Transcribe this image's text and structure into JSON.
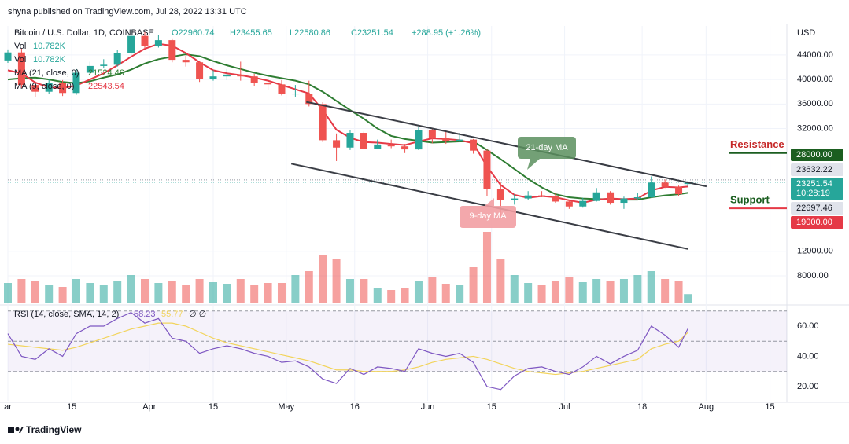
{
  "header": "shyna published on TradingView.com, Jul 28, 2022 13:31 UTC",
  "footer": "TradingView",
  "chart_data": {
    "type": "candlestick",
    "symbol": "Bitcoin / U.S. Dollar, 1D, COINBASE",
    "ohlc_legend": [
      "O22960.74",
      "H23455.65",
      "L22580.86",
      "C23251.54",
      "+288.95 (+1.26%)"
    ],
    "currency": "USD",
    "up_color": "#26a69a",
    "down_color": "#ef5350",
    "x": [
      0,
      3,
      6,
      9,
      12,
      15,
      18,
      21,
      24,
      27,
      30,
      33,
      36,
      39,
      42,
      45,
      48,
      51,
      54,
      57,
      60,
      63,
      66,
      69,
      72,
      75,
      78,
      81,
      84,
      87,
      90,
      93,
      96,
      99,
      102,
      105,
      108,
      111,
      114,
      117,
      120,
      123,
      126,
      129,
      132,
      135,
      138,
      141,
      144,
      147,
      149
    ],
    "open": [
      43100,
      44400,
      39100,
      38000,
      39400,
      37800,
      41100,
      42200,
      42400,
      44300,
      47100,
      45500,
      46400,
      43200,
      42800,
      40100,
      40500,
      40800,
      40500,
      39500,
      39200,
      37700,
      37700,
      36000,
      30100,
      28900,
      31300,
      28700,
      29400,
      29100,
      28600,
      31700,
      30400,
      29900,
      30200,
      28400,
      22100,
      20400,
      20600,
      21100,
      21000,
      20100,
      19300,
      20200,
      21600,
      19900,
      20600,
      20800,
      23200,
      22500,
      22960.74
    ],
    "high": [
      44900,
      45100,
      39700,
      40000,
      39900,
      41700,
      42900,
      43300,
      44800,
      48200,
      47700,
      47200,
      46700,
      43900,
      43000,
      41500,
      41700,
      42900,
      40900,
      40300,
      39900,
      39100,
      39800,
      36300,
      31200,
      31700,
      31500,
      30200,
      30200,
      29500,
      32200,
      31900,
      31700,
      31300,
      30300,
      28600,
      23200,
      21300,
      21800,
      21800,
      21500,
      20400,
      20700,
      22300,
      21800,
      20900,
      21500,
      24200,
      23700,
      22700,
      23455.65
    ],
    "low": [
      42700,
      38600,
      37200,
      37600,
      37300,
      37500,
      40800,
      41800,
      42100,
      44000,
      45000,
      45200,
      42800,
      42100,
      39600,
      39800,
      39900,
      39800,
      38900,
      38300,
      37400,
      37200,
      35600,
      29800,
      26700,
      28500,
      28600,
      28700,
      28800,
      28000,
      28500,
      29600,
      29500,
      29800,
      27900,
      21000,
      17600,
      19600,
      20300,
      20800,
      19900,
      18900,
      19100,
      20100,
      19600,
      18900,
      20300,
      20700,
      22300,
      21000,
      22580.86
    ],
    "close": [
      44400,
      39100,
      38000,
      39400,
      37800,
      41100,
      42200,
      42400,
      44300,
      47100,
      45500,
      46400,
      43200,
      42800,
      40100,
      40500,
      40800,
      40500,
      39500,
      39200,
      37700,
      37700,
      36000,
      30100,
      28900,
      31300,
      28700,
      29400,
      29100,
      28600,
      31700,
      30400,
      29900,
      30200,
      28400,
      22100,
      20400,
      20600,
      21100,
      21000,
      20100,
      19300,
      20200,
      21600,
      19900,
      20600,
      20800,
      23200,
      22500,
      21300,
      23251.54
    ],
    "volume": {
      "name": "Vol",
      "value_label": "10.782K",
      "ylim": [
        0,
        100
      ],
      "values": [
        25,
        30,
        28,
        22,
        20,
        30,
        25,
        22,
        28,
        35,
        30,
        25,
        28,
        22,
        30,
        26,
        24,
        30,
        22,
        25,
        25,
        35,
        40,
        60,
        55,
        30,
        30,
        18,
        16,
        18,
        28,
        32,
        24,
        22,
        45,
        90,
        55,
        35,
        25,
        22,
        28,
        32,
        26,
        30,
        28,
        30,
        35,
        40,
        30,
        28,
        10.782
      ]
    },
    "ma": [
      {
        "name": "MA (21, close, 0)",
        "value_label": "21524.46",
        "color": "#2e7d32",
        "values": [
          40000,
          40200,
          40300,
          40000,
          39600,
          39400,
          39700,
          40300,
          40800,
          41600,
          42600,
          43300,
          43700,
          44100,
          43800,
          43000,
          42300,
          41700,
          41100,
          40600,
          40200,
          39800,
          39200,
          38000,
          36500,
          35000,
          33600,
          32000,
          30800,
          30300,
          30000,
          29700,
          29800,
          29900,
          29900,
          28500,
          27000,
          25400,
          23800,
          22400,
          21300,
          20800,
          20600,
          20500,
          20500,
          20400,
          20400,
          20800,
          21100,
          21300,
          21524.46
        ]
      },
      {
        "name": "MA (9, close, 0)",
        "value_label": "22543.54",
        "color": "#e53946",
        "values": [
          41500,
          41000,
          39500,
          38700,
          38600,
          39000,
          40000,
          41000,
          42300,
          43700,
          45000,
          45800,
          45500,
          44300,
          42800,
          41500,
          41000,
          40700,
          40300,
          39800,
          39100,
          38400,
          37700,
          35000,
          31800,
          30500,
          29800,
          29700,
          29500,
          29300,
          29900,
          30400,
          30300,
          30100,
          29600,
          25800,
          22800,
          21200,
          20700,
          21000,
          20800,
          20300,
          19900,
          20400,
          20600,
          20500,
          20600,
          21900,
          22500,
          22400,
          22543.54
        ]
      }
    ],
    "ylim": [
      3640,
      48720
    ],
    "yticks": [
      {
        "value": 44000,
        "label": "44000.00"
      },
      {
        "value": 40000,
        "label": "40000.00"
      },
      {
        "value": 36000,
        "label": "36000.00"
      },
      {
        "value": 32000,
        "label": "32000.00"
      },
      {
        "value": 12000,
        "label": "12000.00"
      },
      {
        "value": 8000,
        "label": "8000.00"
      }
    ],
    "xlim": [
      0,
      170.7
    ],
    "xticks": [
      {
        "value": 0,
        "label": "ar"
      },
      {
        "value": 14,
        "label": "15"
      },
      {
        "value": 31,
        "label": "Apr"
      },
      {
        "value": 45,
        "label": "15"
      },
      {
        "value": 61,
        "label": "May"
      },
      {
        "value": 76,
        "label": "16"
      },
      {
        "value": 92,
        "label": "Jun"
      },
      {
        "value": 106,
        "label": "15"
      },
      {
        "value": 122,
        "label": "Jul"
      },
      {
        "value": 139,
        "label": "18"
      },
      {
        "value": 153,
        "label": "Aug"
      },
      {
        "value": 167,
        "label": "15"
      }
    ],
    "price_tags": [
      {
        "value": 28000,
        "label": "28000.00",
        "color": "#1b5e20"
      },
      {
        "value": 23632.22,
        "label": "23632.22",
        "color": "#e0e3eb"
      },
      {
        "value": 23251.54,
        "label": "23251.54",
        "sublabel": "10:28:19",
        "color": "#26a69a"
      },
      {
        "value": 22697.46,
        "label": "22697.46",
        "color": "#e0e3eb"
      },
      {
        "value": 19000,
        "label": "19000.00",
        "color": "#e53946"
      }
    ],
    "levels": [
      {
        "name": "Resistance",
        "value": 28000,
        "color": "#1b5e20",
        "text_color": "#c62828"
      },
      {
        "name": "Support",
        "value": 19000,
        "color": "#e53946",
        "text_color": "#1b5e20"
      }
    ],
    "trendlines": [
      {
        "x": [
          65.4,
          153.1
        ],
        "y": [
          36350,
          22570
        ]
      },
      {
        "x": [
          62.1,
          149
        ],
        "y": [
          26270,
          12370
        ]
      }
    ],
    "callouts": [
      "21-day MA",
      "9-day MA"
    ],
    "rsi": {
      "name": "RSI (14, close, SMA, 14, 2)",
      "color": "#7e57c2",
      "value_label": "58.23",
      "sma_color": "#f2d45c",
      "sma_label": "55.77",
      "extra": "∅ ∅",
      "bands": [
        30,
        50,
        70
      ],
      "ylim": [
        10.6,
        70.4
      ],
      "yticks": [
        {
          "value": 60,
          "label": "60.00"
        },
        {
          "value": 40,
          "label": "40.00"
        },
        {
          "value": 20,
          "label": "20.00"
        }
      ],
      "values": [
        55,
        40,
        38,
        45,
        40,
        55,
        60,
        60,
        65,
        69,
        62,
        65,
        52,
        50,
        42,
        45,
        47,
        45,
        42,
        40,
        36,
        37,
        33,
        25,
        22,
        32,
        28,
        33,
        32,
        30,
        45,
        42,
        40,
        42,
        36,
        20,
        18,
        27,
        32,
        33,
        30,
        28,
        33,
        40,
        35,
        40,
        44,
        60,
        54,
        46,
        58.23
      ],
      "sma": [
        48,
        47,
        46,
        45,
        44,
        46,
        49,
        52,
        55,
        58,
        60,
        62,
        62,
        60,
        56,
        52,
        49,
        47,
        45,
        43,
        41,
        39,
        37,
        34,
        31,
        31,
        30,
        30,
        30,
        31,
        33,
        36,
        38,
        39,
        40,
        38,
        35,
        32,
        30,
        29,
        28,
        29,
        30,
        32,
        34,
        36,
        38,
        45,
        48,
        50,
        55.77
      ]
    }
  }
}
